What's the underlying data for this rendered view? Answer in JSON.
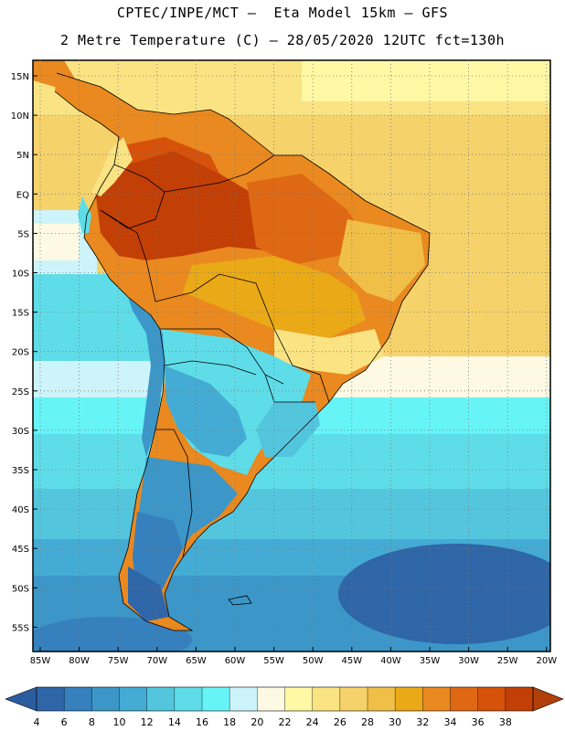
{
  "header": {
    "line1": "CPTEC/INPE/MCT –  Eta Model 15km – GFS",
    "line2": "2 Metre Temperature (C) – 28/05/2020 12UTC fct=130h"
  },
  "map": {
    "lat_labels": [
      "15N",
      "10N",
      "5N",
      "EQ",
      "5S",
      "10S",
      "15S",
      "20S",
      "25S",
      "30S",
      "35S",
      "40S",
      "45S",
      "50S",
      "55S"
    ],
    "lon_labels": [
      "85W",
      "80W",
      "75W",
      "70W",
      "65W",
      "60W",
      "55W",
      "50W",
      "45W",
      "40W",
      "35W",
      "30W",
      "25W",
      "20W"
    ]
  },
  "colorbar": {
    "labels": [
      "4",
      "6",
      "8",
      "10",
      "12",
      "14",
      "16",
      "18",
      "20",
      "22",
      "24",
      "26",
      "28",
      "30",
      "32",
      "34",
      "36",
      "38"
    ],
    "colors": [
      "#2f66a8",
      "#3580bd",
      "#3c97c8",
      "#44acd4",
      "#53c6de",
      "#5edde8",
      "#66f4f7",
      "#cdf4fa",
      "#fdf9e3",
      "#fff8a5",
      "#fae383",
      "#f6d26b",
      "#f0bf47",
      "#eaa917",
      "#e9891f",
      "#de6813",
      "#d6520a",
      "#c23f06"
    ],
    "left_arrow_color": "#2b5d9e",
    "right_arrow_color": "#b2400a"
  }
}
